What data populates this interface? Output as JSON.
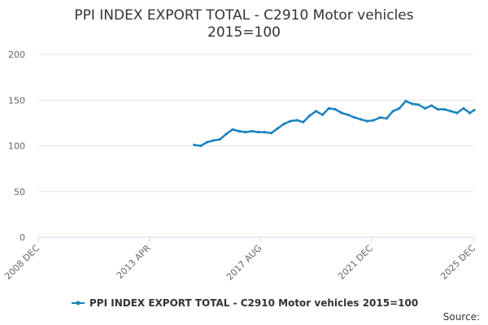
{
  "chart_data": {
    "type": "line",
    "title": "PPI INDEX EXPORT TOTAL - C2910 Motor vehicles",
    "subtitle": "2015=100",
    "xlabel": "",
    "ylabel": "",
    "ylim": [
      0,
      200
    ],
    "yticks": [
      0,
      50,
      100,
      150,
      200
    ],
    "xlim": [
      "2008-12",
      "2025-12"
    ],
    "xticks": [
      "2008 DEC",
      "2013 APR",
      "2017 AUG",
      "2021 DEC",
      "2025 DEC"
    ],
    "grid": true,
    "legend": "bottom",
    "series": [
      {
        "name": "PPI INDEX EXPORT TOTAL - C2910 Motor vehicles 2015=100",
        "color": "#1a82be",
        "x": [
          "2015-01",
          "2015-04",
          "2015-07",
          "2015-10",
          "2016-01",
          "2016-04",
          "2016-07",
          "2016-10",
          "2017-01",
          "2017-04",
          "2017-07",
          "2017-10",
          "2018-01",
          "2018-04",
          "2018-07",
          "2018-10",
          "2019-01",
          "2019-04",
          "2019-07",
          "2019-10",
          "2020-01",
          "2020-04",
          "2020-07",
          "2020-10",
          "2021-01",
          "2021-04",
          "2021-07",
          "2021-10",
          "2022-01",
          "2022-04",
          "2022-07",
          "2022-10",
          "2023-01",
          "2023-04",
          "2023-07",
          "2023-10",
          "2024-01",
          "2024-04",
          "2024-07",
          "2024-10",
          "2025-01",
          "2025-04",
          "2025-07",
          "2025-10",
          "2025-12"
        ],
        "values": [
          101,
          100,
          104,
          106,
          107,
          113,
          118,
          116,
          115,
          116,
          115,
          115,
          114,
          119,
          124,
          127,
          128,
          126,
          133,
          138,
          134,
          141,
          140,
          136,
          134,
          131,
          129,
          127,
          128,
          131,
          130,
          138,
          141,
          149,
          146,
          145,
          141,
          144,
          140,
          140,
          138,
          136,
          141,
          136,
          139
        ]
      }
    ]
  },
  "source_label": "Source:"
}
